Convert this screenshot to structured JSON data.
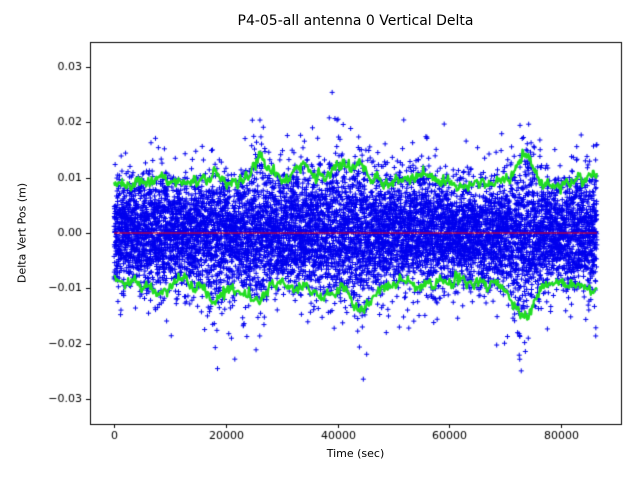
{
  "figure": {
    "background": "#ffffff",
    "frame_color": "#000000",
    "text_color": "#000000"
  },
  "chart_data": {
    "type": "scatter",
    "title": "P4-05-all antenna 0 Vertical Delta",
    "xlabel": "Time (sec)",
    "ylabel": "Delta Vert Pos (m)",
    "xlim": [
      -4320,
      90720
    ],
    "ylim": [
      -0.0345,
      0.0345
    ],
    "x_data_range": [
      0,
      86400
    ],
    "grid": false,
    "xticks": {
      "values": [
        0,
        20000,
        40000,
        60000,
        80000
      ],
      "labels": [
        "0",
        "20000",
        "40000",
        "60000",
        "80000"
      ]
    },
    "yticks": {
      "values": [
        -0.03,
        -0.02,
        -0.01,
        0.0,
        0.01,
        0.02,
        0.03
      ],
      "labels": [
        "−0.03",
        "−0.02",
        "−0.01",
        "0.00",
        "0.01",
        "0.02",
        "0.03"
      ]
    },
    "zero_line": {
      "y": 0,
      "color": "#ff0000"
    },
    "scatter": {
      "name": "vertical-delta-samples",
      "marker": "+",
      "color": "#0000ee",
      "x_start": 0,
      "x_end": 86400,
      "description": "dense noise band centered on 0, spread follows envelopes"
    },
    "envelope": {
      "color": "#22dd22",
      "x": [
        0,
        2000,
        4000,
        6000,
        8000,
        10000,
        12000,
        14000,
        16000,
        18000,
        20000,
        22000,
        24000,
        26000,
        28000,
        30000,
        32000,
        34000,
        36000,
        38000,
        40000,
        42000,
        44000,
        46000,
        48000,
        50000,
        52000,
        54000,
        56000,
        58000,
        60000,
        62000,
        64000,
        66000,
        68000,
        70000,
        72000,
        74000,
        76000,
        78000,
        80000,
        82000,
        84000,
        86000
      ],
      "upper": [
        0.0085,
        0.009,
        0.0096,
        0.0088,
        0.0104,
        0.0093,
        0.009,
        0.0088,
        0.0094,
        0.0106,
        0.0091,
        0.0089,
        0.01,
        0.0152,
        0.0106,
        0.0098,
        0.011,
        0.0121,
        0.0104,
        0.01,
        0.0131,
        0.0109,
        0.0126,
        0.01,
        0.0094,
        0.0091,
        0.0096,
        0.0101,
        0.0111,
        0.0094,
        0.0088,
        0.0086,
        0.009,
        0.0096,
        0.0089,
        0.0094,
        0.0112,
        0.0146,
        0.0094,
        0.0086,
        0.0089,
        0.0096,
        0.01,
        0.0104
      ],
      "lower": [
        -0.0086,
        -0.009,
        -0.0095,
        -0.01,
        -0.0109,
        -0.0094,
        -0.0091,
        -0.0096,
        -0.0101,
        -0.0129,
        -0.01,
        -0.0106,
        -0.0116,
        -0.0119,
        -0.0096,
        -0.0091,
        -0.0094,
        -0.01,
        -0.0106,
        -0.011,
        -0.0106,
        -0.011,
        -0.0147,
        -0.0119,
        -0.01,
        -0.0094,
        -0.0091,
        -0.0095,
        -0.01,
        -0.0094,
        -0.009,
        -0.0086,
        -0.009,
        -0.0094,
        -0.009,
        -0.0101,
        -0.0139,
        -0.0151,
        -0.0104,
        -0.009,
        -0.0086,
        -0.0091,
        -0.0095,
        -0.01
      ]
    },
    "outliers": [
      [
        6600,
        0.0163
      ],
      [
        7400,
        0.0171
      ],
      [
        9000,
        0.0152
      ],
      [
        17600,
        0.015
      ],
      [
        18100,
        -0.0207
      ],
      [
        18500,
        -0.0245
      ],
      [
        21000,
        -0.019
      ],
      [
        25400,
        -0.0211
      ],
      [
        26100,
        0.0204
      ],
      [
        26700,
        0.0191
      ],
      [
        31000,
        0.0176
      ],
      [
        35500,
        0.019
      ],
      [
        38500,
        0.0208
      ],
      [
        39900,
        0.0204
      ],
      [
        41000,
        0.0196
      ],
      [
        43900,
        -0.0206
      ],
      [
        44600,
        -0.0264
      ],
      [
        45200,
        -0.0219
      ],
      [
        48500,
        0.0161
      ],
      [
        55800,
        0.0174
      ],
      [
        63000,
        0.0166
      ],
      [
        70400,
        -0.0187
      ],
      [
        72600,
        -0.0228
      ],
      [
        73600,
        -0.0214
      ],
      [
        76200,
        0.0168
      ],
      [
        85800,
        0.0157
      ],
      [
        86200,
        -0.0186
      ]
    ]
  }
}
